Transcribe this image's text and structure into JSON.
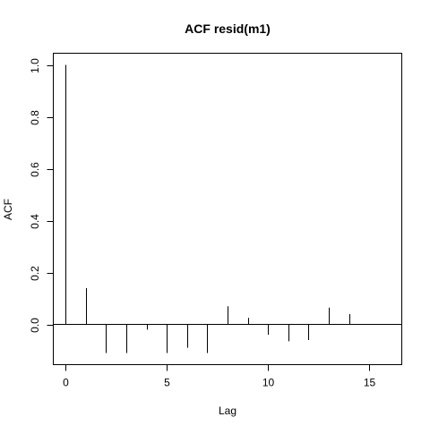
{
  "chart_data": {
    "type": "bar",
    "title": "ACF resid(m1)",
    "xlabel": "Lag",
    "ylabel": "ACF",
    "x": [
      0,
      1,
      2,
      3,
      4,
      5,
      6,
      7,
      8,
      9,
      10,
      11,
      12,
      13,
      14
    ],
    "values": [
      1.0,
      0.14,
      -0.11,
      -0.11,
      -0.02,
      -0.11,
      -0.09,
      -0.11,
      0.07,
      0.025,
      -0.04,
      -0.065,
      -0.06,
      0.065,
      0.04
    ],
    "xlim": [
      -0.6,
      16.6
    ],
    "ylim": [
      -0.155,
      1.045
    ],
    "xticks": [
      0,
      5,
      10,
      15
    ],
    "xtick_labels": [
      "0",
      "5",
      "10",
      "15"
    ],
    "yticks": [
      0.0,
      0.2,
      0.4,
      0.6,
      0.8,
      1.0
    ],
    "ytick_labels": [
      "0.0",
      "0.2",
      "0.4",
      "0.6",
      "0.8",
      "1.0"
    ],
    "zero_line": true,
    "grid": false,
    "colors": {
      "bars": "#000000",
      "axes": "#000000",
      "background": "#ffffff"
    }
  }
}
